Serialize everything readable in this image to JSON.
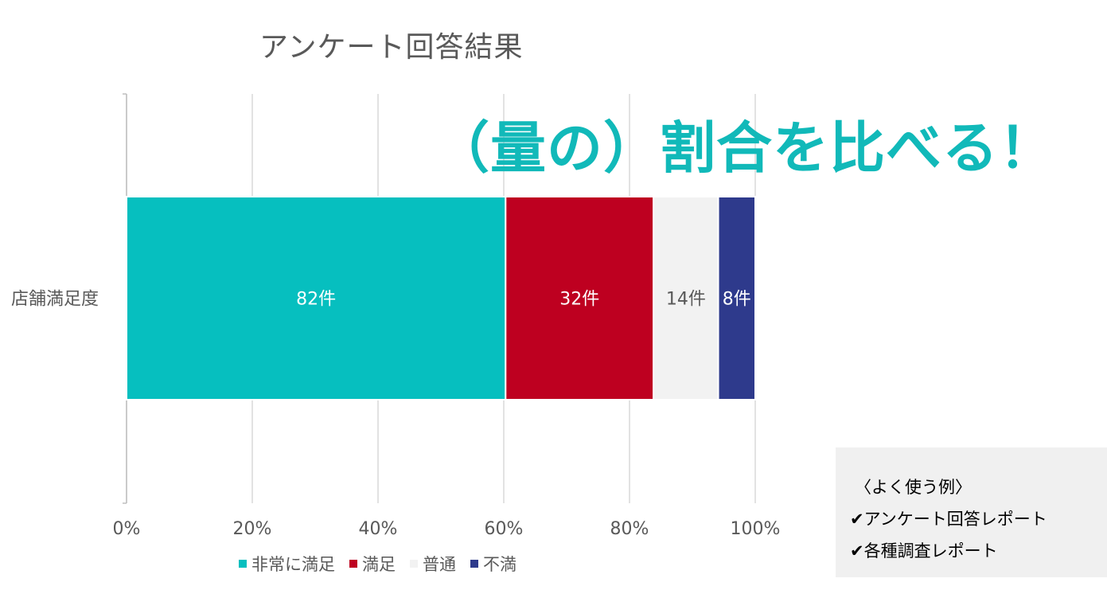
{
  "chart_data": {
    "type": "bar",
    "orientation": "horizontal",
    "stacked": "percent",
    "title": "アンケート回答結果",
    "categories": [
      "店舗満足度"
    ],
    "series": [
      {
        "name": "非常に満足",
        "values": [
          82
        ],
        "label": "82件",
        "color": "#06bfbf",
        "label_color": "#ffffff"
      },
      {
        "name": "満足",
        "values": [
          32
        ],
        "label": "32件",
        "color": "#be0020",
        "label_color": "#ffffff"
      },
      {
        "name": "普通",
        "values": [
          14
        ],
        "label": "14件",
        "color": "#f2f2f2",
        "label_color": "#595959"
      },
      {
        "name": "不満",
        "values": [
          8
        ],
        "label": "8件",
        "color": "#2e3a8c",
        "label_color": "#ffffff"
      }
    ],
    "x_ticks": [
      "0%",
      "20%",
      "40%",
      "60%",
      "80%",
      "100%"
    ],
    "xlim": [
      0,
      100
    ],
    "grid": "vertical",
    "legend_position": "bottom"
  },
  "headline": "（量の）割合を比べる！",
  "note": {
    "heading": "〈よく使う例〉",
    "items": [
      "✔アンケート回答レポート",
      "✔各種調査レポート"
    ]
  }
}
